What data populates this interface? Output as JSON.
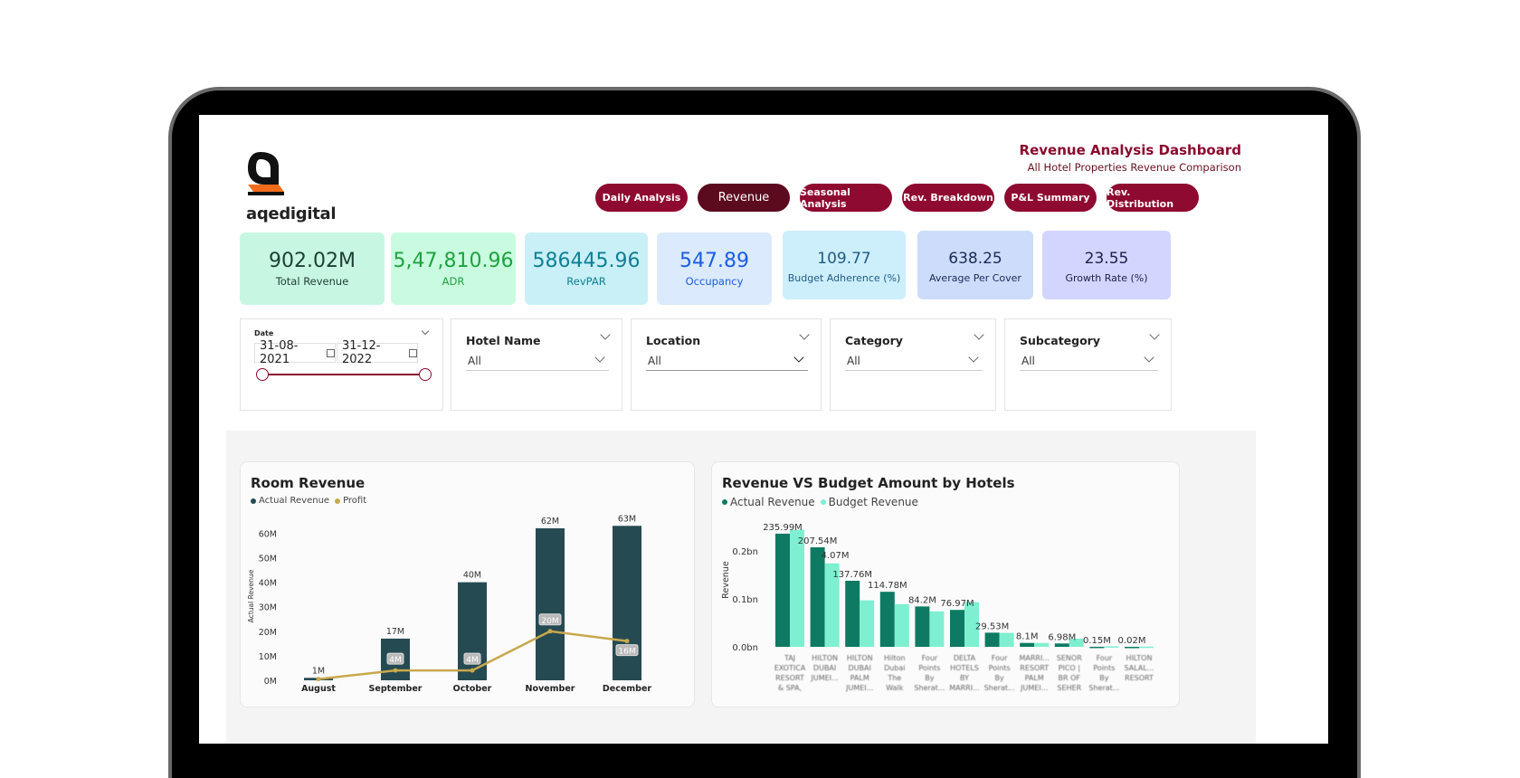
{
  "brand": {
    "name": "aqedigital"
  },
  "header": {
    "title": "Revenue Analysis Dashboard",
    "subtitle": "All Hotel Properties Revenue Comparison"
  },
  "nav": [
    {
      "label": "Daily Analysis",
      "active": false
    },
    {
      "label": "Revenue",
      "active": true
    },
    {
      "label": "Seasonal Analysis",
      "active": false
    },
    {
      "label": "Rev. Breakdown",
      "active": false
    },
    {
      "label": "P&L Summary",
      "active": false
    },
    {
      "label": "Rev. Distribution",
      "active": false
    }
  ],
  "kpis": [
    {
      "value": "902.02M",
      "label": "Total Revenue",
      "bg": "#c7f7e3",
      "color": "#1f3e34"
    },
    {
      "value": "5,47,810.96",
      "label": "ADR",
      "bg": "#c9fbe0",
      "color": "#1ea33e"
    },
    {
      "value": "586445.96",
      "label": "RevPAR",
      "bg": "#c9f0f7",
      "color": "#0f7f94"
    },
    {
      "value": "547.89",
      "label": "Occupancy",
      "bg": "#dbeafd",
      "color": "#1c5ee0"
    },
    {
      "value": "109.77",
      "label": "Budget Adherence (%)",
      "bg": "#cdeefb",
      "color": "#1f5c84"
    },
    {
      "value": "638.25",
      "label": "Average Per Cover",
      "bg": "#cddcfb",
      "color": "#1a2a5a"
    },
    {
      "value": "23.55",
      "label": "Growth Rate (%)",
      "bg": "#d2d5fd",
      "color": "#1a1f4c"
    }
  ],
  "filters": {
    "date": {
      "label": "Date",
      "start": "31-08-2021",
      "end": "31-12-2022"
    },
    "hotel": {
      "label": "Hotel Name",
      "value": "All"
    },
    "location": {
      "label": "Location",
      "value": "All"
    },
    "category": {
      "label": "Category",
      "value": "All"
    },
    "subcategory": {
      "label": "Subcategory",
      "value": "All"
    }
  },
  "room_card": {
    "title": "Room Revenue"
  },
  "budget_card": {
    "title": "Revenue VS Budget Amount by Hotels"
  },
  "chart_data": [
    {
      "type": "bar",
      "title": "Room Revenue",
      "ylabel": "Actual Revenue",
      "categories": [
        "August",
        "September",
        "October",
        "November",
        "December"
      ],
      "yticks": [
        "0M",
        "10M",
        "20M",
        "30M",
        "40M",
        "50M",
        "60M"
      ],
      "ylim": [
        0,
        63
      ],
      "legend_position": "top-left",
      "series": [
        {
          "name": "Actual Revenue",
          "type": "bar",
          "values": [
            1,
            17,
            40,
            62,
            63
          ],
          "labels": [
            "1M",
            "17M",
            "40M",
            "62M",
            "63M"
          ],
          "color": "#264a52"
        },
        {
          "name": "Profit",
          "type": "line",
          "values": [
            0.5,
            4,
            4,
            20,
            16
          ],
          "labels": [
            "",
            "4M",
            "4M",
            "20M",
            "16M"
          ],
          "color": "#c9a84c"
        }
      ]
    },
    {
      "type": "bar",
      "title": "Revenue VS Budget Amount by Hotels",
      "ylabel": "Revenue",
      "yticks": [
        "0.0bn",
        "0.1bn",
        "0.2bn"
      ],
      "ylim": [
        0,
        0.25
      ],
      "legend_position": "top-left",
      "categories": [
        "TAJ EXOTICA RESORT & SPA, ...",
        "HILTON DUBAI JUMEI...",
        "HILTON DUBAI PALM JUMEI...",
        "Hilton Dubai The Walk H...",
        "Four Points By Sherat... SZR",
        "DELTA HOTELS BY MARRI...",
        "Four Points By Sherat... Downt...",
        "MARRI... RESORT PALM JUMEI...",
        "SENOR PICO | BR OF SEHER ...",
        "Four Points By Sherat... Bur Du...",
        "HILTON SALAL... RESORT"
      ],
      "series": [
        {
          "name": "Actual Revenue",
          "values": [
            0.23599,
            0.20754,
            0.13776,
            0.11478,
            0.0842,
            0.07697,
            0.02953,
            0.0081,
            0.00698,
            0.00015,
            2e-05
          ],
          "labels": [
            "235.99M",
            "207.54M",
            "137.76M",
            "114.78M",
            "84.2M",
            "76.97M",
            "29.53M",
            "8.1M",
            "6.98M",
            "0.15M",
            "0.02M"
          ],
          "color": "#0e7a63"
        },
        {
          "name": "Budget Revenue",
          "values": [
            0.244,
            0.174,
            0.097,
            0.089,
            0.074,
            0.093,
            0.029,
            0.008,
            0.017,
            0.001,
            0.0005
          ],
          "labels": [
            "",
            "",
            "",
            "",
            "",
            "",
            "",
            "",
            "",
            "",
            ""
          ],
          "label_extra": "4.07M",
          "color": "#7eefd0"
        }
      ]
    }
  ]
}
